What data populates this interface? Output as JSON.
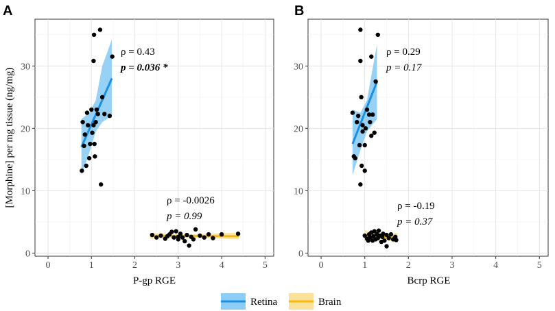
{
  "figure": {
    "legend": {
      "items": [
        {
          "label": "Retina",
          "line_color": "#1a8fe3",
          "fill_color": "#8ccdf5"
        },
        {
          "label": "Brain",
          "line_color": "#f6b80e",
          "fill_color": "#fbe29a"
        }
      ],
      "placement": "bottom-center"
    }
  },
  "chart_data": [
    {
      "panel_label": "A",
      "type": "scatter",
      "xlabel": "P-gp RGE",
      "ylabel": "[Morphine] per mg tissue (ng/mg)",
      "xlim": [
        -0.3,
        5.2
      ],
      "ylim": [
        -0.5,
        37.5
      ],
      "xticks": [
        0,
        1,
        2,
        3,
        4,
        5
      ],
      "yticks": [
        0,
        10,
        20,
        30
      ],
      "grid": true,
      "series": [
        {
          "name": "Retina",
          "points": [
            [
              0.78,
              13.2
            ],
            [
              0.8,
              21.0
            ],
            [
              0.83,
              17.2
            ],
            [
              0.85,
              19.0
            ],
            [
              0.88,
              14.0
            ],
            [
              0.9,
              22.5
            ],
            [
              0.92,
              20.5
            ],
            [
              0.95,
              15.2
            ],
            [
              0.97,
              17.5
            ],
            [
              1.0,
              23.0
            ],
            [
              1.02,
              19.3
            ],
            [
              1.05,
              20.5
            ],
            [
              1.06,
              35.0
            ],
            [
              1.07,
              17.5
            ],
            [
              1.08,
              15.5
            ],
            [
              1.1,
              21.0
            ],
            [
              1.12,
              23.0
            ],
            [
              1.15,
              22.3
            ],
            [
              1.2,
              35.8
            ],
            [
              1.22,
              11.0
            ],
            [
              1.25,
              25.0
            ],
            [
              1.3,
              22.3
            ],
            [
              1.42,
              22.0
            ],
            [
              1.48,
              31.5
            ],
            [
              1.05,
              30.8
            ]
          ],
          "fit": {
            "x": [
              0.77,
              1.47
            ],
            "y": [
              17.0,
              28.0
            ]
          },
          "band": {
            "x": [
              0.77,
              0.95,
              1.1,
              1.25,
              1.47
            ],
            "lower": [
              12.5,
              16.0,
              19.5,
              21.0,
              22.0
            ],
            "upper": [
              21.5,
              22.5,
              24.5,
              30.0,
              34.2
            ]
          }
        },
        {
          "name": "Brain",
          "points": [
            [
              2.4,
              2.9
            ],
            [
              2.5,
              2.5
            ],
            [
              2.6,
              2.8
            ],
            [
              2.7,
              2.3
            ],
            [
              2.8,
              3.0
            ],
            [
              2.85,
              3.4
            ],
            [
              2.9,
              2.5
            ],
            [
              2.95,
              3.5
            ],
            [
              3.0,
              2.2
            ],
            [
              3.05,
              3.1
            ],
            [
              3.1,
              2.5
            ],
            [
              3.15,
              1.9
            ],
            [
              3.2,
              2.9
            ],
            [
              3.25,
              1.2
            ],
            [
              3.3,
              2.6
            ],
            [
              3.35,
              2.2
            ],
            [
              3.4,
              3.8
            ],
            [
              3.5,
              2.8
            ],
            [
              3.6,
              2.5
            ],
            [
              3.7,
              3.0
            ],
            [
              3.8,
              2.4
            ],
            [
              4.0,
              3.0
            ],
            [
              4.38,
              3.1
            ],
            [
              3.0,
              2.6
            ],
            [
              2.75,
              2.7
            ]
          ],
          "fit": {
            "x": [
              2.35,
              4.4
            ],
            "y": [
              2.75,
              2.7
            ]
          },
          "band": {
            "x": [
              2.35,
              3.3,
              4.4
            ],
            "lower": [
              2.3,
              2.5,
              2.2
            ],
            "upper": [
              3.2,
              3.0,
              3.3
            ]
          }
        }
      ],
      "annotations": [
        {
          "series": "Retina",
          "rho": "ρ = 0.43",
          "p": "p = 0.036 *",
          "p_bold": true
        },
        {
          "series": "Brain",
          "rho": "ρ = -0.0026",
          "p": "p = 0.99",
          "p_bold": false
        }
      ]
    },
    {
      "panel_label": "B",
      "type": "scatter",
      "xlabel": "Bcrp RGE",
      "ylabel": "",
      "xlim": [
        -0.3,
        5.2
      ],
      "ylim": [
        -0.5,
        37.5
      ],
      "xticks": [
        0,
        1,
        2,
        3,
        4,
        5
      ],
      "yticks": [
        0,
        10,
        20,
        30
      ],
      "grid": true,
      "series": [
        {
          "name": "Retina",
          "points": [
            [
              0.72,
              22.5
            ],
            [
              0.75,
              15.5
            ],
            [
              0.78,
              15.2
            ],
            [
              0.82,
              21.0
            ],
            [
              0.85,
              22.0
            ],
            [
              0.88,
              17.3
            ],
            [
              0.9,
              35.8
            ],
            [
              0.9,
              30.8
            ],
            [
              0.92,
              25.0
            ],
            [
              0.93,
              14.0
            ],
            [
              0.95,
              19.5
            ],
            [
              0.95,
              20.5
            ],
            [
              0.9,
              11.0
            ],
            [
              1.0,
              17.3
            ],
            [
              1.0,
              13.2
            ],
            [
              1.02,
              20.0
            ],
            [
              1.05,
              23.0
            ],
            [
              1.1,
              22.2
            ],
            [
              1.12,
              21.0
            ],
            [
              1.15,
              31.5
            ],
            [
              1.15,
              18.8
            ],
            [
              1.18,
              22.2
            ],
            [
              1.22,
              19.3
            ],
            [
              1.25,
              27.5
            ],
            [
              1.3,
              35.0
            ]
          ],
          "fit": {
            "x": [
              0.72,
              1.28
            ],
            "y": [
              17.5,
              27.5
            ]
          },
          "band": {
            "x": [
              0.72,
              0.9,
              1.05,
              1.28
            ],
            "lower": [
              12.5,
              16.5,
              19.5,
              21.5
            ],
            "upper": [
              23.0,
              22.5,
              24.5,
              33.5
            ]
          }
        },
        {
          "name": "Brain",
          "points": [
            [
              1.0,
              2.8
            ],
            [
              1.05,
              2.3
            ],
            [
              1.1,
              3.0
            ],
            [
              1.12,
              2.5
            ],
            [
              1.15,
              3.3
            ],
            [
              1.18,
              2.0
            ],
            [
              1.2,
              2.7
            ],
            [
              1.22,
              3.5
            ],
            [
              1.25,
              2.2
            ],
            [
              1.28,
              3.0
            ],
            [
              1.3,
              2.4
            ],
            [
              1.32,
              3.6
            ],
            [
              1.35,
              2.8
            ],
            [
              1.38,
              1.8
            ],
            [
              1.4,
              2.6
            ],
            [
              1.42,
              3.1
            ],
            [
              1.45,
              2.0
            ],
            [
              1.5,
              2.9
            ],
            [
              1.5,
              1.1
            ],
            [
              1.55,
              2.4
            ],
            [
              1.6,
              3.0
            ],
            [
              1.65,
              2.2
            ],
            [
              1.7,
              2.6
            ],
            [
              1.72,
              2.1
            ],
            [
              1.08,
              2.0
            ]
          ],
          "fit": {
            "x": [
              1.0,
              1.75
            ],
            "y": [
              2.8,
              2.45
            ]
          },
          "band": {
            "x": [
              1.0,
              1.35,
              1.75
            ],
            "lower": [
              2.0,
              2.3,
              1.7
            ],
            "upper": [
              3.6,
              3.0,
              3.2
            ]
          }
        }
      ],
      "annotations": [
        {
          "series": "Retina",
          "rho": "ρ = 0.29",
          "p": "p = 0.17",
          "p_bold": false
        },
        {
          "series": "Brain",
          "rho": "ρ = -0.19",
          "p": "p = 0.37",
          "p_bold": false
        }
      ]
    }
  ]
}
